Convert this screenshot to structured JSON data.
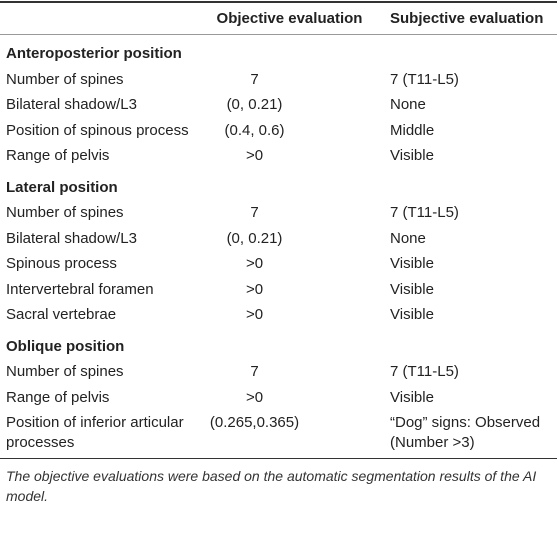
{
  "table": {
    "columns": [
      "Objective evaluation",
      "Subjective evaluation"
    ],
    "sections": [
      {
        "title": "Anteroposterior position",
        "rows": [
          [
            "Number of spines",
            "7",
            "7 (T11-L5)"
          ],
          [
            "Bilateral shadow/L3",
            "(0, 0.21)",
            "None"
          ],
          [
            "Position of spinous process",
            "(0.4, 0.6)",
            "Middle"
          ],
          [
            "Range of pelvis",
            ">0",
            "Visible"
          ]
        ]
      },
      {
        "title": "Lateral position",
        "rows": [
          [
            "Number of spines",
            "7",
            "7 (T11-L5)"
          ],
          [
            "Bilateral shadow/L3",
            "(0, 0.21)",
            "None"
          ],
          [
            "Spinous process",
            ">0",
            "Visible"
          ],
          [
            "Intervertebral foramen",
            ">0",
            "Visible"
          ],
          [
            "Sacral vertebrae",
            ">0",
            "Visible"
          ]
        ]
      },
      {
        "title": "Oblique position",
        "rows": [
          [
            "Number of spines",
            "7",
            "7 (T11-L5)"
          ],
          [
            "Range of pelvis",
            ">0",
            "Visible"
          ],
          [
            "Position of inferior articular processes",
            "(0.265,0.365)",
            "“Dog” signs: Observed (Number >3)"
          ]
        ]
      }
    ],
    "footnote": "The objective evaluations were based on the automatic segmentation results of the AI model."
  }
}
